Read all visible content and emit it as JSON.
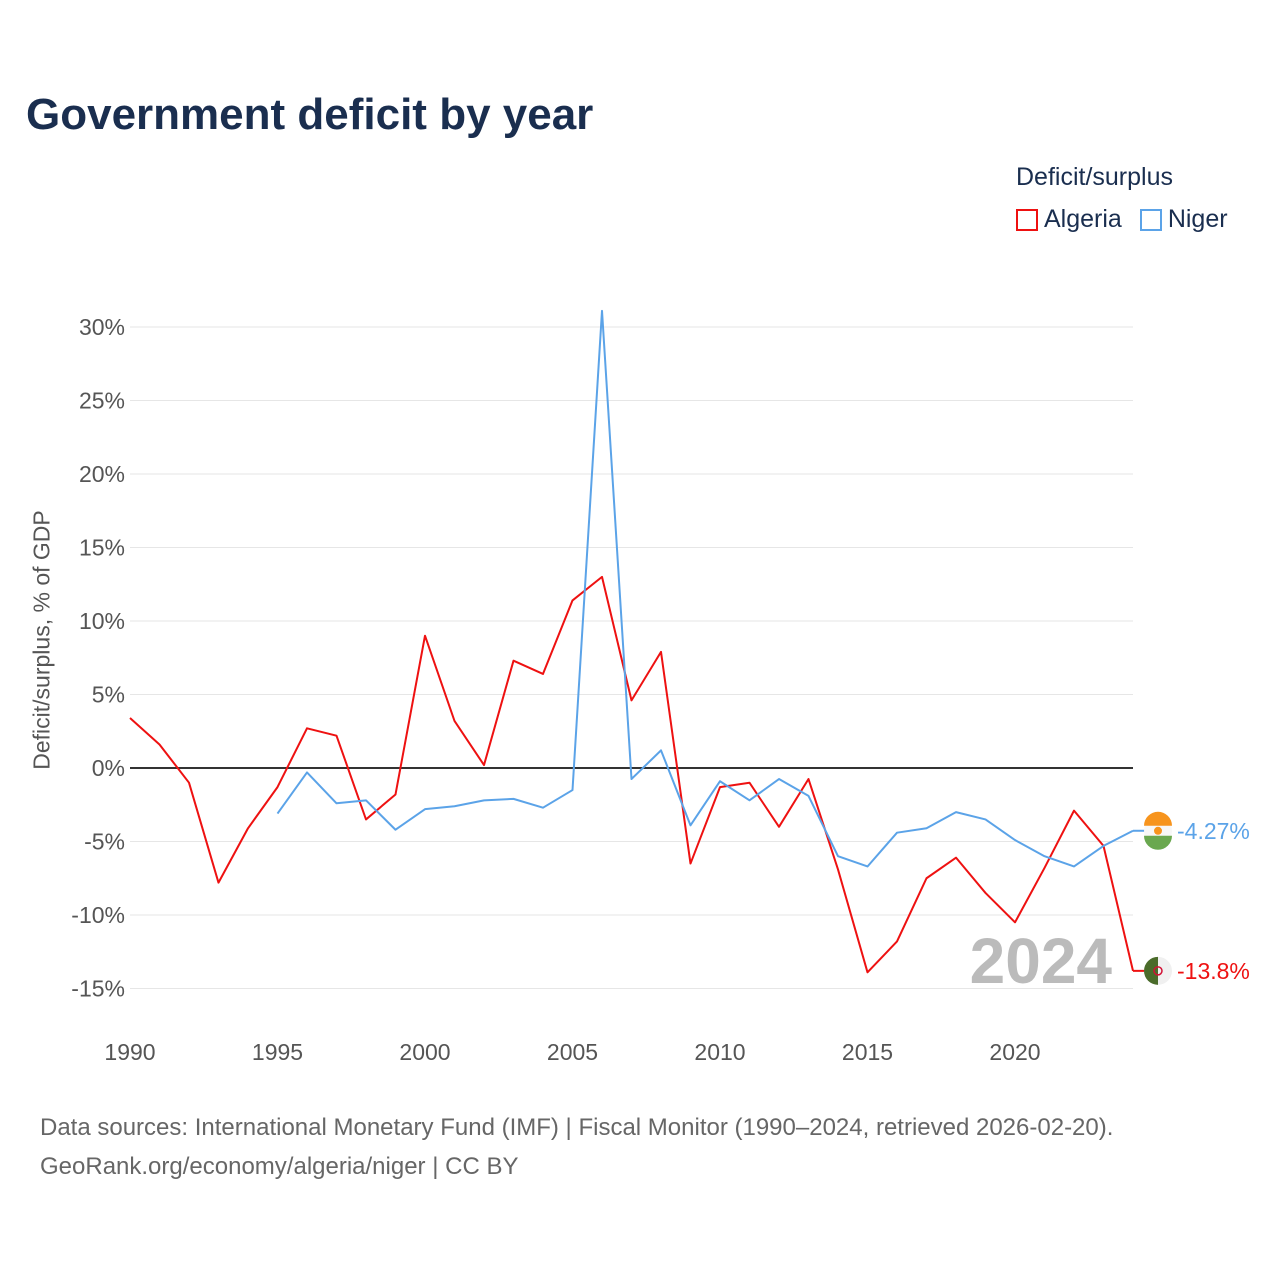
{
  "title": "Government deficit by year",
  "legend": {
    "title": "Deficit/surplus",
    "items": [
      "Algeria",
      "Niger"
    ]
  },
  "footer": {
    "line1": "Data sources: International Monetary Fund (IMF) | Fiscal Monitor (1990–2024, retrieved 2026-02-20).",
    "line2": "GeoRank.org/economy/algeria/niger | CC BY"
  },
  "chart_data": {
    "type": "line",
    "title": "Government deficit by year",
    "xlabel": "",
    "ylabel": "Deficit/surplus, % of GDP",
    "xlim": [
      1990,
      2024
    ],
    "ylim": [
      -15,
      30
    ],
    "x_ticks": [
      1990,
      1995,
      2000,
      2005,
      2010,
      2015,
      2020
    ],
    "y_ticks": [
      30,
      25,
      20,
      15,
      10,
      5,
      0,
      -5,
      -10,
      -15
    ],
    "y_tick_labels": [
      "30%",
      "25%",
      "20%",
      "15%",
      "10%",
      "5%",
      "0%",
      "-5%",
      "-10%",
      "-15%"
    ],
    "year_watermark": "2024",
    "legend_placement": "top-right",
    "series": [
      {
        "name": "Algeria",
        "color": "#ee1111",
        "end_label": "-13.8%",
        "x": [
          1990,
          1991,
          1992,
          1993,
          1994,
          1995,
          1996,
          1997,
          1998,
          1999,
          2000,
          2001,
          2002,
          2003,
          2004,
          2005,
          2006,
          2007,
          2008,
          2009,
          2010,
          2011,
          2012,
          2013,
          2014,
          2015,
          2016,
          2017,
          2018,
          2019,
          2020,
          2021,
          2022,
          2023,
          2024
        ],
        "values": [
          3.4,
          1.6,
          -1.0,
          -7.8,
          -4.1,
          -1.3,
          2.7,
          2.2,
          -3.5,
          -1.8,
          9.0,
          3.2,
          0.2,
          7.3,
          6.4,
          11.4,
          13.0,
          4.6,
          7.9,
          -6.5,
          -1.3,
          -1.0,
          -4.0,
          -0.75,
          -6.9,
          -13.9,
          -11.8,
          -7.5,
          -6.1,
          -8.5,
          -10.5,
          -6.8,
          -2.9,
          -5.3,
          -13.8
        ]
      },
      {
        "name": "Niger",
        "color": "#5ba3e8",
        "end_label": "-4.27%",
        "x": [
          1995,
          1996,
          1997,
          1998,
          1999,
          2000,
          2001,
          2002,
          2003,
          2004,
          2005,
          2006,
          2007,
          2008,
          2009,
          2010,
          2011,
          2012,
          2013,
          2014,
          2015,
          2016,
          2017,
          2018,
          2019,
          2020,
          2021,
          2022,
          2023,
          2024
        ],
        "values": [
          -3.1,
          -0.3,
          -2.4,
          -2.2,
          -4.2,
          -2.8,
          -2.6,
          -2.2,
          -2.1,
          -2.7,
          -1.5,
          31.1,
          -0.75,
          1.2,
          -3.9,
          -0.9,
          -2.2,
          -0.75,
          -1.9,
          -6.0,
          -6.7,
          -4.4,
          -4.1,
          -3.0,
          -3.5,
          -4.9,
          -6.0,
          -6.7,
          -5.3,
          -4.27
        ]
      }
    ]
  }
}
